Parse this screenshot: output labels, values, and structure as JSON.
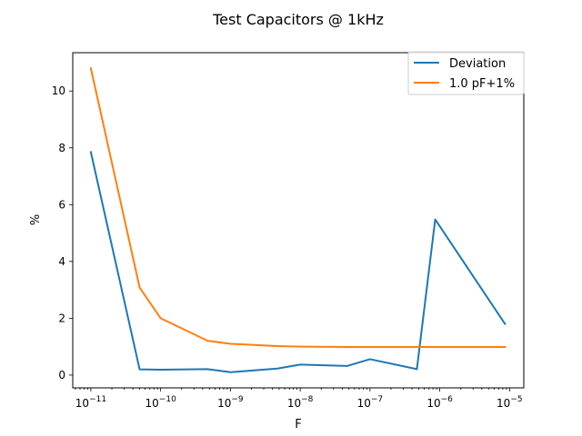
{
  "chart_data": {
    "type": "line",
    "title": "Test Capacitors @ 1kHz",
    "xlabel": "F",
    "ylabel": "%",
    "xscale": "log",
    "xlim": [
      5.5e-12,
      1.6e-05
    ],
    "ylim": [
      -0.45,
      11.35
    ],
    "x_ticks": [
      {
        "value": 1e-11,
        "base": "10",
        "exp": "−11"
      },
      {
        "value": 1e-10,
        "base": "10",
        "exp": "−10"
      },
      {
        "value": 1e-09,
        "base": "10",
        "exp": "−9"
      },
      {
        "value": 1e-08,
        "base": "10",
        "exp": "−8"
      },
      {
        "value": 1e-07,
        "base": "10",
        "exp": "−7"
      },
      {
        "value": 1e-06,
        "base": "10",
        "exp": "−6"
      },
      {
        "value": 1e-05,
        "base": "10",
        "exp": "−5"
      }
    ],
    "y_ticks": [
      {
        "value": 0,
        "label": "0"
      },
      {
        "value": 2,
        "label": "2"
      },
      {
        "value": 4,
        "label": "4"
      },
      {
        "value": 6,
        "label": "6"
      },
      {
        "value": 8,
        "label": "8"
      },
      {
        "value": 10,
        "label": "10"
      }
    ],
    "grid": false,
    "legend_position": "top-right",
    "series": [
      {
        "name": "Deviation",
        "color": "#1f77b4",
        "x": [
          1e-11,
          5e-11,
          1e-10,
          4.7e-10,
          1e-09,
          4.7e-09,
          1e-08,
          4.7e-08,
          1e-07,
          4.7e-07,
          8.6e-07,
          8.6e-06
        ],
        "y": [
          7.85,
          0.2,
          0.19,
          0.21,
          0.1,
          0.23,
          0.37,
          0.32,
          0.56,
          0.21,
          5.48,
          1.8
        ]
      },
      {
        "name": "1.0 pF+1%",
        "color": "#ff7f0e",
        "x": [
          1e-11,
          5e-11,
          1e-10,
          4.7e-10,
          1e-09,
          4.7e-09,
          1e-08,
          4.7e-08,
          1e-07,
          4.7e-07,
          8.6e-07,
          8.6e-06
        ],
        "y": [
          10.8,
          3.08,
          2.0,
          1.21,
          1.1,
          1.02,
          1.0,
          0.99,
          0.99,
          0.99,
          0.99,
          0.99
        ]
      }
    ]
  }
}
